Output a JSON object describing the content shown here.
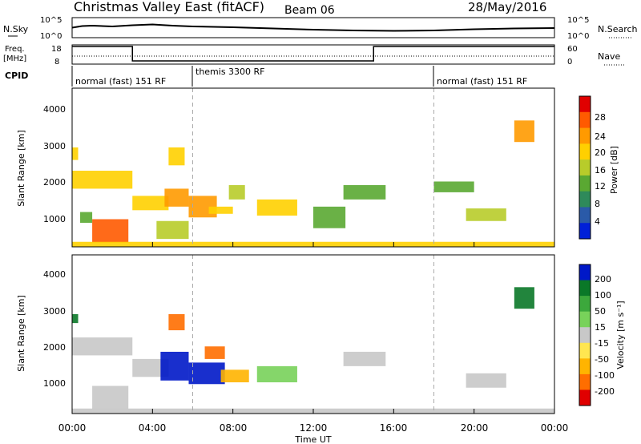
{
  "header": {
    "title": "Christmas Valley East (fitACF)",
    "beam": "Beam 06",
    "date": "28/May/2016"
  },
  "noise_panel": {
    "left_label": "N.Sky",
    "right_label": "N.Search",
    "left_ticks": [
      "10^5",
      "10^0"
    ],
    "right_ticks": [
      "10^5",
      "10^0"
    ]
  },
  "freq_panel": {
    "left_label_1": "Freq.",
    "left_label_2": "[MHz]",
    "right_label": "Nave",
    "left_ticks": [
      "18",
      "8"
    ],
    "right_ticks": [
      "60",
      "0"
    ]
  },
  "cpid": {
    "label": "CPID",
    "segments": [
      {
        "text": "normal (fast) 151 RF",
        "start_h": 0
      },
      {
        "text": "themis 3300 RF",
        "start_h": 6
      },
      {
        "text": "normal (fast) 151 RF",
        "start_h": 18
      }
    ]
  },
  "power_colorbar": {
    "label": "Power [dB]",
    "ticks": [
      "28",
      "24",
      "20",
      "16",
      "12",
      "8",
      "4"
    ],
    "colors": [
      "#e00000",
      "#ff5a00",
      "#ff9a00",
      "#ffd000",
      "#b8cc2a",
      "#5aa832",
      "#2e8a5a",
      "#2a5aa8",
      "#0020d8"
    ]
  },
  "velocity_colorbar": {
    "label": "Velocity [m s⁻¹]",
    "ticks": [
      "200",
      "100",
      "50",
      "15",
      "-15",
      "-50",
      "-100",
      "-200"
    ],
    "colors": [
      "#0018c8",
      "#0a7828",
      "#3ca83c",
      "#78d25a",
      "#c8c8c8",
      "#ffe650",
      "#ffb400",
      "#ff6e00",
      "#e00000"
    ]
  },
  "axes": {
    "ylabel": "Slant Range [km]",
    "xlabel": "Time UT",
    "yticks": [
      "4000",
      "3000",
      "2000",
      "1000"
    ],
    "xticks": [
      "00:00",
      "04:00",
      "08:00",
      "12:00",
      "16:00",
      "20:00",
      "00:00"
    ]
  },
  "chart_data": [
    {
      "type": "line",
      "name": "noise",
      "x": [
        0,
        0.5,
        1,
        2,
        3,
        4,
        5,
        6,
        8,
        10,
        12,
        14,
        16,
        18,
        20,
        22,
        24
      ],
      "y_sky": [
        2.5,
        2.9,
        3.0,
        2.8,
        3.1,
        3.3,
        3.0,
        2.8,
        2.6,
        2.3,
        2.0,
        1.8,
        1.7,
        1.8,
        2.1,
        2.3,
        2.4
      ],
      "ylim": [
        0,
        5
      ]
    },
    {
      "type": "line",
      "name": "frequency",
      "x": [
        0,
        3,
        3,
        15,
        15,
        24
      ],
      "y": [
        18,
        18,
        10.5,
        10.5,
        18,
        18
      ],
      "ylim": [
        8,
        18
      ]
    },
    {
      "type": "heatmap",
      "title": "Power",
      "x_range_h": [
        0,
        24
      ],
      "y_range_km": [
        180,
        4600
      ],
      "clim": [
        0,
        30
      ],
      "blobs": [
        {
          "t0": 0.0,
          "t1": 3.0,
          "r0": 1800,
          "r1": 2300,
          "v": 19
        },
        {
          "t0": 0.0,
          "t1": 0.3,
          "r0": 2600,
          "r1": 2950,
          "v": 20
        },
        {
          "t0": 1.0,
          "t1": 2.8,
          "r0": 300,
          "r1": 950,
          "v": 28
        },
        {
          "t0": 0.4,
          "t1": 1.0,
          "r0": 850,
          "r1": 1150,
          "v": 12
        },
        {
          "t0": 3.0,
          "t1": 4.8,
          "r0": 1200,
          "r1": 1600,
          "v": 20
        },
        {
          "t0": 4.6,
          "t1": 5.8,
          "r0": 1300,
          "r1": 1800,
          "v": 23
        },
        {
          "t0": 4.8,
          "t1": 5.6,
          "r0": 2450,
          "r1": 2950,
          "v": 20
        },
        {
          "t0": 4.2,
          "t1": 5.8,
          "r0": 400,
          "r1": 900,
          "v": 16
        },
        {
          "t0": 5.8,
          "t1": 7.2,
          "r0": 1000,
          "r1": 1600,
          "v": 22
        },
        {
          "t0": 6.8,
          "t1": 8.0,
          "r0": 1100,
          "r1": 1300,
          "v": 18
        },
        {
          "t0": 7.8,
          "t1": 8.6,
          "r0": 1500,
          "r1": 1900,
          "v": 14
        },
        {
          "t0": 9.2,
          "t1": 11.2,
          "r0": 1050,
          "r1": 1500,
          "v": 18
        },
        {
          "t0": 12.0,
          "t1": 13.6,
          "r0": 700,
          "r1": 1300,
          "v": 12
        },
        {
          "t0": 13.5,
          "t1": 15.6,
          "r0": 1500,
          "r1": 1900,
          "v": 11
        },
        {
          "t0": 19.6,
          "t1": 21.6,
          "r0": 900,
          "r1": 1250,
          "v": 16
        },
        {
          "t0": 22.0,
          "t1": 23.0,
          "r0": 3100,
          "r1": 3700,
          "v": 22
        },
        {
          "t0": 18.0,
          "t1": 20.0,
          "r0": 1700,
          "r1": 2000,
          "v": 10
        },
        {
          "t0": 0.0,
          "t1": 24.0,
          "r0": 180,
          "r1": 320,
          "v": 18
        }
      ]
    },
    {
      "type": "heatmap",
      "title": "Velocity",
      "x_range_h": [
        0,
        24
      ],
      "y_range_km": [
        180,
        4600
      ],
      "clim": [
        -250,
        250
      ],
      "blobs": [
        {
          "t0": 0.0,
          "t1": 3.0,
          "r0": 1800,
          "r1": 2300,
          "v": 0
        },
        {
          "t0": 0.0,
          "t1": 0.3,
          "r0": 2700,
          "r1": 2950,
          "v": 200
        },
        {
          "t0": 1.0,
          "t1": 2.8,
          "r0": 300,
          "r1": 950,
          "v": 0
        },
        {
          "t0": 3.0,
          "t1": 4.8,
          "r0": 1200,
          "r1": 1700,
          "v": 0
        },
        {
          "t0": 4.4,
          "t1": 5.8,
          "r0": 1100,
          "r1": 1900,
          "v": 220
        },
        {
          "t0": 4.8,
          "t1": 5.6,
          "r0": 2500,
          "r1": 2950,
          "v": -200
        },
        {
          "t0": 5.8,
          "t1": 7.6,
          "r0": 1000,
          "r1": 1600,
          "v": 220
        },
        {
          "t0": 6.6,
          "t1": 7.6,
          "r0": 1700,
          "r1": 2050,
          "v": -200
        },
        {
          "t0": 7.4,
          "t1": 8.8,
          "r0": 1050,
          "r1": 1400,
          "v": -120
        },
        {
          "t0": 9.2,
          "t1": 11.2,
          "r0": 1050,
          "r1": 1500,
          "v": 60
        },
        {
          "t0": 13.5,
          "t1": 15.6,
          "r0": 1500,
          "r1": 1900,
          "v": 0
        },
        {
          "t0": 19.6,
          "t1": 21.6,
          "r0": 900,
          "r1": 1300,
          "v": 0
        },
        {
          "t0": 22.0,
          "t1": 23.0,
          "r0": 3100,
          "r1": 3700,
          "v": 210
        },
        {
          "t0": 0.0,
          "t1": 24.0,
          "r0": 180,
          "r1": 320,
          "v": -20
        }
      ]
    }
  ]
}
